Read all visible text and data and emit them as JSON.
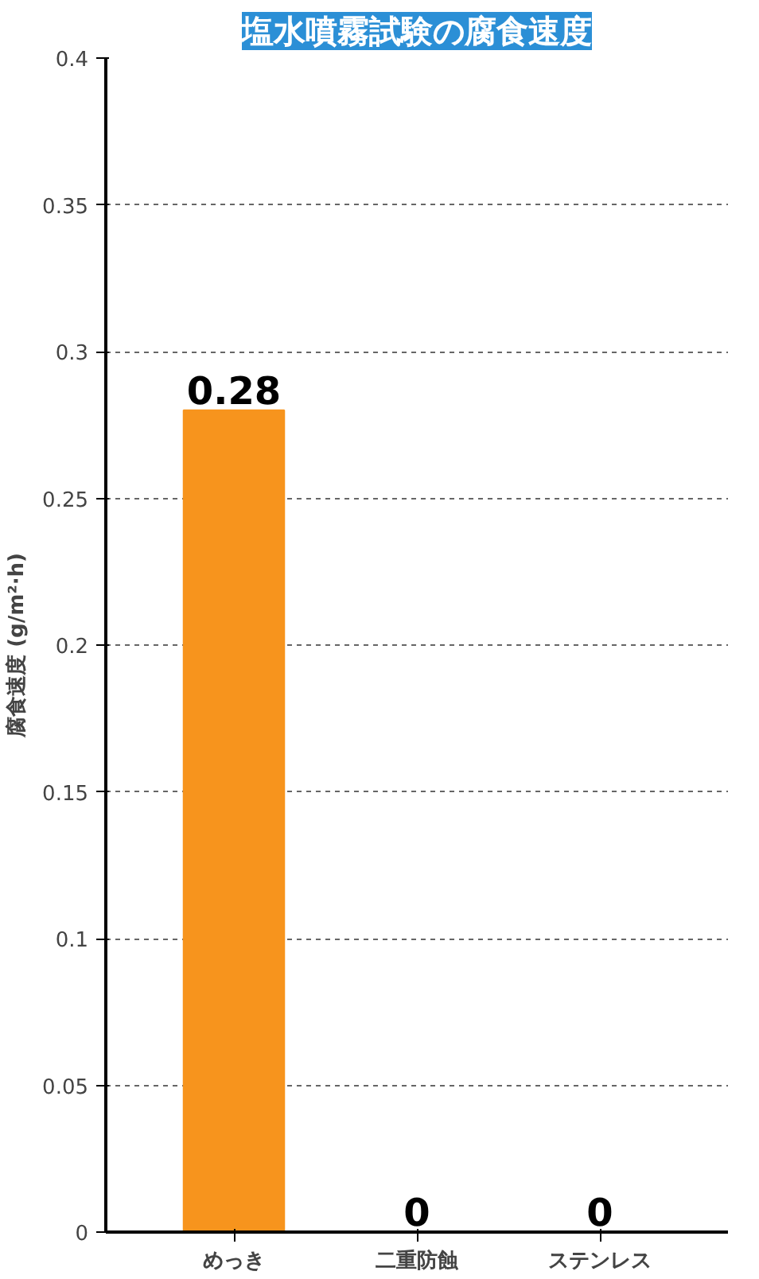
{
  "chart_data": {
    "type": "bar",
    "title": "塩水噴霧試験の腐食速度",
    "ylabel": "腐食速度 (g/m²·h)",
    "categories": [
      "めっき",
      "二重防蝕",
      "ステンレス"
    ],
    "values": [
      0.28,
      0,
      0
    ],
    "color": "#f7941d",
    "ylim": [
      0,
      0.4
    ],
    "yticks": [
      0,
      0.05,
      0.1,
      0.15,
      0.2,
      0.25,
      0.3,
      0.35,
      0.4
    ],
    "grid": "y",
    "data_labels": true
  }
}
